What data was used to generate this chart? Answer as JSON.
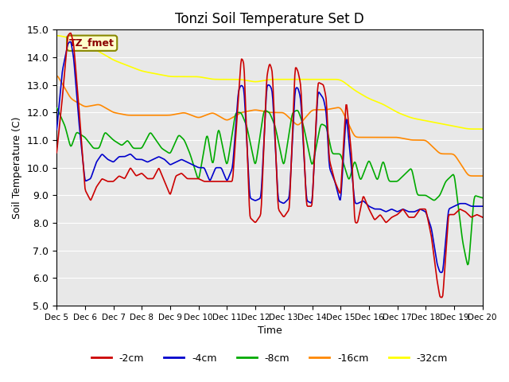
{
  "title": "Tonzi Soil Temperature Set D",
  "xlabel": "Time",
  "ylabel": "Soil Temperature (C)",
  "ylim": [
    5.0,
    15.0
  ],
  "yticks": [
    5.0,
    6.0,
    7.0,
    8.0,
    9.0,
    10.0,
    11.0,
    12.0,
    13.0,
    14.0,
    15.0
  ],
  "xtick_labels": [
    "Dec 5",
    "Dec 6",
    "Dec 7",
    "Dec 8",
    "Dec 9",
    "Dec 10",
    "Dec 11",
    "Dec 12",
    "Dec 13",
    "Dec 14",
    "Dec 15",
    "Dec 16",
    "Dec 17",
    "Dec 18",
    "Dec 19",
    "Dec 20"
  ],
  "annotation_text": "TZ_fmet",
  "bg_color": "#e8e8e8",
  "colors": {
    "-2cm": "#cc0000",
    "-4cm": "#0000cc",
    "-8cm": "#00aa00",
    "-16cm": "#ff8800",
    "-32cm": "#ffff00"
  },
  "legend_labels": [
    "-2cm",
    "-4cm",
    "-8cm",
    "-16cm",
    "-32cm"
  ],
  "t_base_2cm": [
    0.0,
    0.2,
    0.4,
    0.5,
    0.6,
    0.8,
    1.0,
    1.2,
    1.4,
    1.6,
    1.8,
    2.0,
    2.2,
    2.4,
    2.6,
    2.8,
    3.0,
    3.2,
    3.4,
    3.6,
    3.8,
    4.0,
    4.2,
    4.4,
    4.6,
    4.8,
    5.0,
    5.2,
    5.4,
    5.6,
    5.8,
    6.0,
    6.2,
    6.4,
    6.5,
    6.6,
    6.8,
    7.0,
    7.2,
    7.4,
    7.5,
    7.6,
    7.8,
    8.0,
    8.2,
    8.4,
    8.5,
    8.6,
    8.8,
    9.0,
    9.2,
    9.4,
    9.5,
    9.6,
    9.8,
    10.0,
    10.2,
    10.4,
    10.5,
    10.6,
    10.8,
    11.0,
    11.2,
    11.4,
    11.6,
    11.8,
    12.0,
    12.2,
    12.4,
    12.5,
    12.6,
    12.8,
    13.0,
    13.2,
    13.4,
    13.5,
    13.6,
    13.8,
    14.0,
    14.2,
    14.4,
    14.6,
    14.8,
    15.0
  ],
  "y_2cm": [
    10.5,
    12.5,
    14.8,
    14.9,
    14.5,
    12.0,
    9.2,
    8.8,
    9.3,
    9.6,
    9.5,
    9.5,
    9.7,
    9.6,
    10.0,
    9.7,
    9.8,
    9.6,
    9.6,
    10.0,
    9.5,
    9.0,
    9.7,
    9.8,
    9.6,
    9.6,
    9.6,
    9.5,
    9.5,
    9.5,
    9.5,
    9.5,
    9.5,
    12.5,
    14.0,
    13.8,
    8.2,
    8.0,
    8.3,
    13.3,
    13.8,
    13.5,
    8.5,
    8.2,
    8.5,
    13.7,
    13.5,
    13.0,
    8.6,
    8.6,
    13.1,
    13.0,
    12.5,
    10.3,
    9.5,
    9.0,
    12.5,
    10.3,
    8.0,
    8.0,
    9.0,
    8.5,
    8.1,
    8.3,
    8.0,
    8.2,
    8.3,
    8.5,
    8.2,
    8.2,
    8.2,
    8.5,
    8.5,
    7.5,
    5.9,
    5.3,
    5.3,
    8.3,
    8.3,
    8.5,
    8.4,
    8.2,
    8.3,
    8.2
  ],
  "t_base_4cm": [
    0.0,
    0.2,
    0.4,
    0.5,
    0.6,
    0.8,
    1.0,
    1.2,
    1.4,
    1.6,
    1.8,
    2.0,
    2.2,
    2.4,
    2.6,
    2.8,
    3.0,
    3.2,
    3.4,
    3.6,
    3.8,
    4.0,
    4.2,
    4.4,
    4.6,
    4.8,
    5.0,
    5.2,
    5.4,
    5.6,
    5.8,
    6.0,
    6.2,
    6.4,
    6.5,
    6.6,
    6.8,
    7.0,
    7.2,
    7.4,
    7.5,
    7.6,
    7.8,
    8.0,
    8.2,
    8.4,
    8.5,
    8.6,
    8.8,
    9.0,
    9.2,
    9.4,
    9.5,
    9.6,
    9.8,
    10.0,
    10.2,
    10.4,
    10.5,
    10.6,
    10.8,
    11.0,
    11.2,
    11.4,
    11.6,
    11.8,
    12.0,
    12.2,
    12.4,
    12.5,
    12.6,
    12.8,
    13.0,
    13.2,
    13.4,
    13.5,
    13.6,
    13.8,
    14.0,
    14.2,
    14.4,
    14.6,
    14.8,
    15.0
  ],
  "y_4cm": [
    11.3,
    13.5,
    14.5,
    14.6,
    14.0,
    11.5,
    9.5,
    9.6,
    10.2,
    10.5,
    10.3,
    10.2,
    10.4,
    10.4,
    10.5,
    10.3,
    10.3,
    10.2,
    10.3,
    10.4,
    10.3,
    10.1,
    10.2,
    10.3,
    10.2,
    10.1,
    10.0,
    10.0,
    9.5,
    10.0,
    10.0,
    9.5,
    10.0,
    12.8,
    13.0,
    12.9,
    8.9,
    8.8,
    8.9,
    13.0,
    13.0,
    12.8,
    8.8,
    8.7,
    8.9,
    12.9,
    12.9,
    12.5,
    8.8,
    8.7,
    12.8,
    12.5,
    12.0,
    10.0,
    9.5,
    8.7,
    12.0,
    9.8,
    8.7,
    8.7,
    8.8,
    8.6,
    8.5,
    8.5,
    8.4,
    8.5,
    8.4,
    8.5,
    8.4,
    8.4,
    8.4,
    8.5,
    8.4,
    7.8,
    6.5,
    6.2,
    6.2,
    8.5,
    8.6,
    8.7,
    8.7,
    8.6,
    8.6,
    8.6
  ],
  "t_base_8cm": [
    0.0,
    0.3,
    0.5,
    0.7,
    1.0,
    1.3,
    1.5,
    1.7,
    2.0,
    2.3,
    2.5,
    2.7,
    3.0,
    3.3,
    3.5,
    3.7,
    4.0,
    4.3,
    4.5,
    4.7,
    5.0,
    5.3,
    5.5,
    5.7,
    6.0,
    6.3,
    6.5,
    6.7,
    7.0,
    7.3,
    7.5,
    7.7,
    8.0,
    8.3,
    8.5,
    8.7,
    9.0,
    9.3,
    9.5,
    9.7,
    10.0,
    10.3,
    10.5,
    10.7,
    11.0,
    11.3,
    11.5,
    11.7,
    12.0,
    12.3,
    12.5,
    12.7,
    13.0,
    13.3,
    13.5,
    13.7,
    14.0,
    14.3,
    14.5,
    14.7,
    15.0
  ],
  "y_8cm": [
    12.2,
    11.5,
    10.7,
    11.3,
    11.1,
    10.7,
    10.7,
    11.3,
    11.0,
    10.8,
    11.0,
    10.7,
    10.7,
    11.3,
    11.0,
    10.7,
    10.5,
    11.2,
    11.0,
    10.5,
    9.5,
    11.3,
    10.0,
    11.5,
    10.0,
    12.0,
    12.0,
    11.5,
    10.0,
    12.1,
    12.0,
    11.5,
    10.0,
    12.0,
    12.1,
    11.5,
    10.0,
    11.6,
    11.5,
    10.5,
    10.5,
    9.5,
    10.3,
    9.5,
    10.3,
    9.5,
    10.3,
    9.5,
    9.5,
    9.8,
    10.0,
    9.0,
    9.0,
    8.8,
    9.0,
    9.5,
    9.8,
    7.3,
    6.3,
    9.0,
    8.9
  ],
  "t_base_16cm": [
    0.0,
    0.5,
    1.0,
    1.5,
    2.0,
    2.5,
    3.0,
    3.5,
    4.0,
    4.5,
    5.0,
    5.5,
    6.0,
    6.5,
    7.0,
    7.5,
    8.0,
    8.5,
    9.0,
    9.5,
    10.0,
    10.5,
    11.0,
    11.5,
    12.0,
    12.5,
    13.0,
    13.5,
    14.0,
    14.5,
    15.0
  ],
  "y_16cm": [
    13.4,
    12.5,
    12.2,
    12.3,
    12.0,
    11.9,
    11.9,
    11.9,
    11.9,
    12.0,
    11.8,
    12.0,
    11.7,
    12.0,
    12.1,
    12.0,
    12.0,
    11.5,
    12.1,
    12.1,
    12.2,
    11.1,
    11.1,
    11.1,
    11.1,
    11.0,
    11.0,
    10.5,
    10.5,
    9.7,
    9.7
  ],
  "t_base_32cm": [
    0.0,
    0.5,
    1.0,
    1.5,
    2.0,
    2.5,
    3.0,
    3.5,
    4.0,
    4.5,
    5.0,
    5.5,
    6.0,
    6.5,
    7.0,
    7.5,
    8.0,
    8.5,
    9.0,
    9.5,
    10.0,
    10.5,
    11.0,
    11.5,
    12.0,
    12.5,
    13.0,
    13.5,
    14.0,
    14.5,
    15.0
  ],
  "y_32cm": [
    14.8,
    14.7,
    14.5,
    14.2,
    13.9,
    13.7,
    13.5,
    13.4,
    13.3,
    13.3,
    13.3,
    13.2,
    13.2,
    13.2,
    13.1,
    13.2,
    13.2,
    13.2,
    13.2,
    13.2,
    13.2,
    12.8,
    12.5,
    12.3,
    12.0,
    11.8,
    11.7,
    11.6,
    11.5,
    11.4,
    11.4
  ]
}
